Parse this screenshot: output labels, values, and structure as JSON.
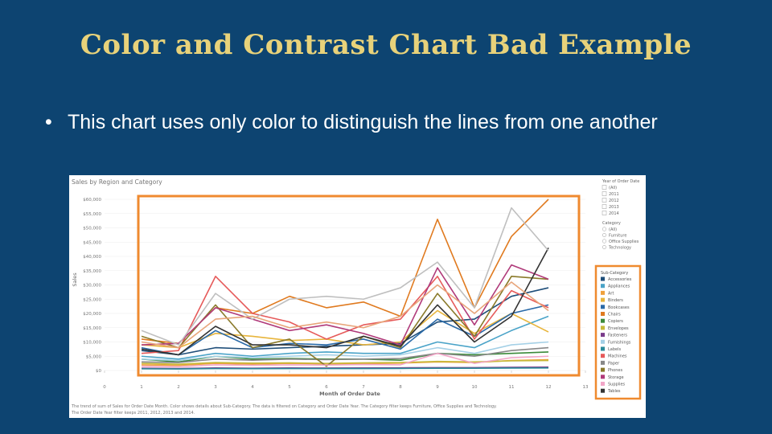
{
  "slide": {
    "title": "Color and Contrast Chart Bad Example",
    "bullet": "This chart uses only color to distinguish the lines from one another"
  },
  "colors": {
    "background": "#0d4471",
    "title": "#e8d27a",
    "highlight": "#ef8a2f"
  },
  "chart_data": {
    "type": "line",
    "title": "Sales by Region and Category",
    "xlabel": "Month of Order Date",
    "ylabel": "Sales",
    "x": [
      1,
      2,
      3,
      4,
      5,
      6,
      7,
      8,
      9,
      10,
      11,
      12
    ],
    "x_ticks": [
      "0",
      "1",
      "2",
      "3",
      "4",
      "5",
      "6",
      "7",
      "8",
      "9",
      "10",
      "11",
      "12",
      "13"
    ],
    "xlim": [
      0,
      13
    ],
    "ylim": [
      0,
      60000
    ],
    "y_ticks": [
      "$0",
      "$5,000",
      "$10,000",
      "$15,000",
      "$20,000",
      "$25,000",
      "$30,000",
      "$35,000",
      "$40,000",
      "$45,000",
      "$50,000",
      "$55,000",
      "$60,000"
    ],
    "caption": "The trend of sum of Sales for Order Date Month.  Color shows details about Sub-Category.  The data is filtered on Category and Order Date Year.  The Category filter keeps Furniture, Office Supplies and Technology.  The Order Date Year filter keeps 2011, 2012, 2013 and 2014.",
    "filters": {
      "year_title": "Year of Order Date",
      "years": [
        "(All)",
        "2011",
        "2012",
        "2013",
        "2014"
      ],
      "category_title": "Category",
      "categories": [
        "(All)",
        "Furniture",
        "Office Supplies",
        "Technology"
      ]
    },
    "legend_title": "Sub-Category",
    "series": [
      {
        "name": "Accessories",
        "color": "#1f4e79",
        "values": [
          7000,
          5500,
          8000,
          7500,
          8000,
          8500,
          9000,
          9500,
          17000,
          18000,
          26000,
          29000
        ]
      },
      {
        "name": "Appliances",
        "color": "#4aa3c8",
        "values": [
          5000,
          4000,
          6000,
          5000,
          6000,
          6500,
          6000,
          6000,
          10000,
          8000,
          14000,
          19000
        ]
      },
      {
        "name": "Art",
        "color": "#f0a13c",
        "values": [
          2000,
          1800,
          2500,
          2200,
          2500,
          2300,
          2400,
          2600,
          3000,
          2800,
          3500,
          3800
        ]
      },
      {
        "name": "Binders",
        "color": "#e8b53c",
        "values": [
          9000,
          8000,
          13000,
          12000,
          10500,
          11000,
          9000,
          10000,
          21000,
          13000,
          20000,
          13500
        ]
      },
      {
        "name": "Bookcases",
        "color": "#2a6aa8",
        "values": [
          8000,
          5500,
          14000,
          8000,
          9500,
          9000,
          11000,
          7500,
          18000,
          12000,
          20000,
          23000
        ]
      },
      {
        "name": "Chairs",
        "color": "#e07a1f",
        "values": [
          11000,
          9500,
          22000,
          20000,
          26000,
          22000,
          24000,
          19000,
          53000,
          22000,
          47000,
          60000
        ]
      },
      {
        "name": "Copiers",
        "color": "#3c8a3a",
        "values": [
          4000,
          3000,
          5000,
          4000,
          4200,
          4000,
          4000,
          3600,
          6000,
          5500,
          6000,
          6500
        ]
      },
      {
        "name": "Envelopes",
        "color": "#c7b93a",
        "values": [
          2500,
          2200,
          2800,
          2600,
          2700,
          2500,
          2700,
          2800,
          3200,
          3000,
          3400,
          3500
        ]
      },
      {
        "name": "Fasteners",
        "color": "#7a3c8a",
        "values": [
          800,
          700,
          900,
          800,
          900,
          850,
          900,
          950,
          1000,
          1000,
          1100,
          1200
        ]
      },
      {
        "name": "Furnishings",
        "color": "#a4d0e6",
        "values": [
          4000,
          3500,
          5000,
          4500,
          5000,
          5500,
          5000,
          5500,
          8000,
          6000,
          9000,
          10000
        ]
      },
      {
        "name": "Labels",
        "color": "#2a8a9a",
        "values": [
          600,
          550,
          700,
          650,
          700,
          680,
          700,
          720,
          800,
          780,
          850,
          900
        ]
      },
      {
        "name": "Machines",
        "color": "#e65a5a",
        "values": [
          6000,
          7000,
          33000,
          20000,
          17000,
          11000,
          16000,
          18000,
          33000,
          11000,
          28000,
          22000
        ]
      },
      {
        "name": "Paper",
        "color": "#888888",
        "values": [
          3000,
          2800,
          4000,
          3600,
          4000,
          3800,
          4000,
          4200,
          6000,
          5000,
          7000,
          8000
        ]
      },
      {
        "name": "Phones",
        "color": "#8a7a2a",
        "values": [
          12000,
          8000,
          23000,
          8000,
          11000,
          1500,
          12000,
          8000,
          27000,
          12000,
          33000,
          32000
        ]
      },
      {
        "name": "Storage",
        "color": "#b03a7a",
        "values": [
          9000,
          9500,
          22000,
          18000,
          14000,
          16000,
          13000,
          9000,
          36000,
          16000,
          37000,
          32000
        ]
      },
      {
        "name": "Supplies",
        "color": "#f2a6c8",
        "values": [
          1500,
          1300,
          2000,
          1800,
          2000,
          1900,
          2100,
          2000,
          6000,
          2500,
          4500,
          5000
        ]
      },
      {
        "name": "Tables",
        "color": "#333333",
        "values": [
          7500,
          5500,
          15500,
          9000,
          9000,
          8000,
          12000,
          8500,
          23000,
          10000,
          19000,
          43000
        ]
      },
      {
        "name": "Tables",
        "color": "#bfbfbf",
        "values": [
          14000,
          9000,
          27000,
          18000,
          25000,
          26000,
          25000,
          29000,
          38000,
          22000,
          57000,
          42000
        ]
      },
      {
        "name": "Tables",
        "color": "#e8a57a",
        "values": [
          10000,
          8000,
          18000,
          19000,
          15000,
          17000,
          15000,
          19000,
          30000,
          20000,
          31000,
          21000
        ]
      }
    ]
  }
}
